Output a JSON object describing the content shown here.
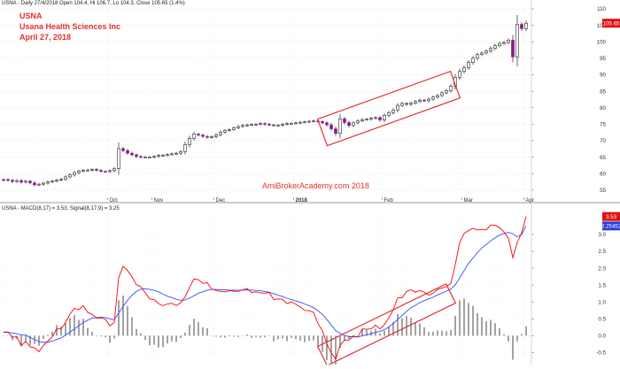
{
  "price_panel": {
    "header": "USNA - Daily 27/4/2018 Open 104.4, Hi 106.7, Lo 104.3, Close 105.65 (1.4%)",
    "annotations": [
      "USNA",
      "Usana Health Sciences Inc",
      "April 27, 2018"
    ],
    "watermark": "AmiBrokerAcademy.com  2018",
    "last_price_label": "105.65"
  },
  "macd_panel": {
    "header": "USNA - MACD(8,17) = 3.53, Signal(8,17,9) = 3.25",
    "macd_label": "3.53",
    "signal_label": "3.25452"
  },
  "colors": {
    "up_candle_body": "#ffffff",
    "down_candle_body": "#8b1a8b",
    "candle_outline": "#000000",
    "annotation_red": "#e03030",
    "macd_line": "#ff0000",
    "signal_line": "#3050ff",
    "histogram": "#333333"
  },
  "chart_data": [
    {
      "type": "candlestick",
      "title": "USNA",
      "ylim": [
        52,
        110
      ],
      "y_ticks": [
        55,
        60,
        65,
        70,
        75,
        80,
        85,
        90,
        95,
        100,
        105,
        110
      ],
      "x_ticks": [
        "Oct",
        "Nov",
        "Dec",
        "2018",
        "Feb",
        "Mar",
        "Apr"
      ],
      "grid": true,
      "series": [
        {
          "name": "USNA",
          "close": [
            58.2,
            58.0,
            57.6,
            57.9,
            57.4,
            57.7,
            57.2,
            56.6,
            56.8,
            57.1,
            57.5,
            57.7,
            58.0,
            58.3,
            59.0,
            59.6,
            60.3,
            60.8,
            61.0,
            61.1,
            61.3,
            61.0,
            60.7,
            60.6,
            60.9,
            61.5,
            67.6,
            67.0,
            66.2,
            65.7,
            65.2,
            65.0,
            65.0,
            65.0,
            65.2,
            65.5,
            65.6,
            65.8,
            66.0,
            66.2,
            66.7,
            68.8,
            70.7,
            72.0,
            71.7,
            71.3,
            71.0,
            71.2,
            71.8,
            72.6,
            73.1,
            73.4,
            73.9,
            74.3,
            74.6,
            74.8,
            74.9,
            75.0,
            75.2,
            75.0,
            74.8,
            74.7,
            74.7,
            75.0,
            75.2,
            75.2,
            75.4,
            75.6,
            75.7,
            75.9,
            76.0,
            75.8,
            75.4,
            74.8,
            73.6,
            72.2,
            76.6,
            75.5,
            74.6,
            75.4,
            76.0,
            76.4,
            76.5,
            76.8,
            77.0,
            76.3,
            77.7,
            78.5,
            79.3,
            80.7,
            81.3,
            81.0,
            81.4,
            81.9,
            82.3,
            82.1,
            82.6,
            83.2,
            83.7,
            84.5,
            85.2,
            86.5,
            89.2,
            91.0,
            92.2,
            93.7,
            95.0,
            96.1,
            96.6,
            97.2,
            98.0,
            98.8,
            99.5,
            99.8,
            100.5,
            95.4,
            105.3,
            104.0,
            105.65
          ]
        }
      ]
    },
    {
      "type": "line",
      "title": "MACD(8,17)",
      "ylim": [
        -0.75,
        3.6
      ],
      "y_ticks": [
        -0.5,
        0.0,
        0.5,
        1.0,
        1.5,
        2.0,
        2.5,
        3.0
      ],
      "grid": true,
      "series": [
        {
          "name": "MACD(8,17)",
          "values": [
            0.11,
            0.11,
            -0.05,
            -0.03,
            -0.3,
            -0.17,
            -0.33,
            -0.36,
            -0.47,
            -0.29,
            -0.16,
            -0.04,
            0.2,
            0.2,
            0.39,
            0.64,
            0.81,
            0.77,
            0.89,
            0.69,
            0.63,
            0.52,
            0.53,
            0.49,
            0.29,
            0.39,
            1.72,
            2.06,
            1.93,
            1.75,
            1.51,
            1.45,
            1.27,
            1.09,
            1.07,
            0.95,
            0.89,
            0.94,
            0.96,
            0.89,
            0.98,
            1.15,
            1.43,
            1.68,
            1.66,
            1.55,
            1.57,
            1.38,
            1.34,
            1.31,
            1.3,
            1.33,
            1.32,
            1.31,
            1.36,
            1.4,
            1.28,
            1.3,
            1.27,
            1.26,
            1.28,
            1.07,
            1.09,
            1.08,
            0.95,
            1.0,
            0.93,
            0.85,
            0.75,
            0.74,
            0.69,
            0.36,
            0.15,
            -0.24,
            -0.51,
            -0.7,
            -0.29,
            -0.13,
            -0.13,
            -0.01,
            -0.04,
            0.2,
            0.19,
            0.2,
            0.31,
            0.2,
            0.33,
            0.53,
            0.77,
            1.12,
            1.12,
            1.31,
            1.36,
            1.29,
            1.34,
            1.29,
            1.2,
            1.26,
            1.37,
            1.41,
            1.45,
            1.55,
            2.1,
            2.76,
            3.03,
            3.11,
            3.18,
            3.13,
            3.15,
            3.13,
            3.28,
            3.27,
            3.2,
            3.07,
            2.89,
            2.31,
            2.76,
            3.05,
            3.53
          ]
        },
        {
          "name": "Signal(8,17,9)",
          "values": [
            0.1,
            0.1,
            0.08,
            0.06,
            0.02,
            0.02,
            -0.05,
            -0.11,
            -0.17,
            -0.2,
            -0.19,
            -0.16,
            -0.11,
            -0.07,
            0.02,
            0.11,
            0.2,
            0.3,
            0.39,
            0.46,
            0.52,
            0.54,
            0.55,
            0.54,
            0.5,
            0.47,
            0.67,
            0.87,
            1.05,
            1.2,
            1.31,
            1.38,
            1.39,
            1.37,
            1.34,
            1.3,
            1.23,
            1.17,
            1.13,
            1.08,
            1.05,
            1.06,
            1.11,
            1.18,
            1.26,
            1.3,
            1.35,
            1.37,
            1.37,
            1.36,
            1.36,
            1.35,
            1.35,
            1.35,
            1.35,
            1.36,
            1.35,
            1.34,
            1.33,
            1.31,
            1.29,
            1.24,
            1.2,
            1.16,
            1.11,
            1.07,
            1.03,
            0.99,
            0.94,
            0.89,
            0.83,
            0.74,
            0.63,
            0.48,
            0.32,
            0.15,
            0.07,
            0.01,
            -0.03,
            -0.03,
            -0.04,
            0.0,
            0.02,
            0.06,
            0.1,
            0.13,
            0.18,
            0.26,
            0.36,
            0.48,
            0.6,
            0.72,
            0.83,
            0.9,
            0.98,
            1.04,
            1.09,
            1.14,
            1.21,
            1.26,
            1.32,
            1.38,
            1.51,
            1.71,
            1.93,
            2.14,
            2.3,
            2.46,
            2.6,
            2.7,
            2.81,
            2.9,
            2.98,
            3.03,
            3.06,
            3.02,
            2.93,
            3.0,
            3.25
          ]
        },
        {
          "name": "Histogram",
          "type": "bar",
          "values": [
            0.01,
            0.01,
            -0.13,
            -0.09,
            -0.32,
            -0.19,
            -0.28,
            -0.25,
            -0.3,
            -0.09,
            0.03,
            0.12,
            0.31,
            0.27,
            0.37,
            0.53,
            0.61,
            0.47,
            0.5,
            0.23,
            0.11,
            -0.02,
            -0.02,
            -0.05,
            -0.21,
            -0.08,
            1.05,
            1.19,
            0.88,
            0.55,
            0.2,
            0.07,
            -0.12,
            -0.28,
            -0.27,
            -0.35,
            -0.34,
            -0.23,
            -0.17,
            -0.19,
            -0.07,
            0.09,
            0.32,
            0.5,
            0.4,
            0.25,
            0.22,
            0.01,
            -0.03,
            -0.05,
            -0.06,
            -0.02,
            -0.03,
            -0.04,
            0.01,
            0.04,
            -0.07,
            -0.04,
            -0.06,
            -0.05,
            -0.01,
            -0.17,
            -0.11,
            -0.08,
            -0.16,
            -0.07,
            -0.1,
            -0.14,
            -0.19,
            -0.15,
            -0.14,
            -0.38,
            -0.48,
            -0.72,
            -0.83,
            -0.85,
            -0.36,
            -0.14,
            -0.1,
            0.02,
            0.0,
            0.2,
            0.17,
            0.14,
            0.21,
            0.07,
            0.15,
            0.27,
            0.41,
            0.64,
            0.52,
            0.59,
            0.53,
            0.39,
            0.36,
            0.25,
            0.11,
            0.12,
            0.16,
            0.15,
            0.13,
            0.17,
            0.59,
            1.05,
            1.1,
            0.97,
            0.88,
            0.67,
            0.55,
            0.43,
            0.47,
            0.37,
            0.22,
            0.04,
            -0.17,
            -0.71,
            -0.17,
            0.05,
            0.28
          ]
        }
      ]
    }
  ]
}
